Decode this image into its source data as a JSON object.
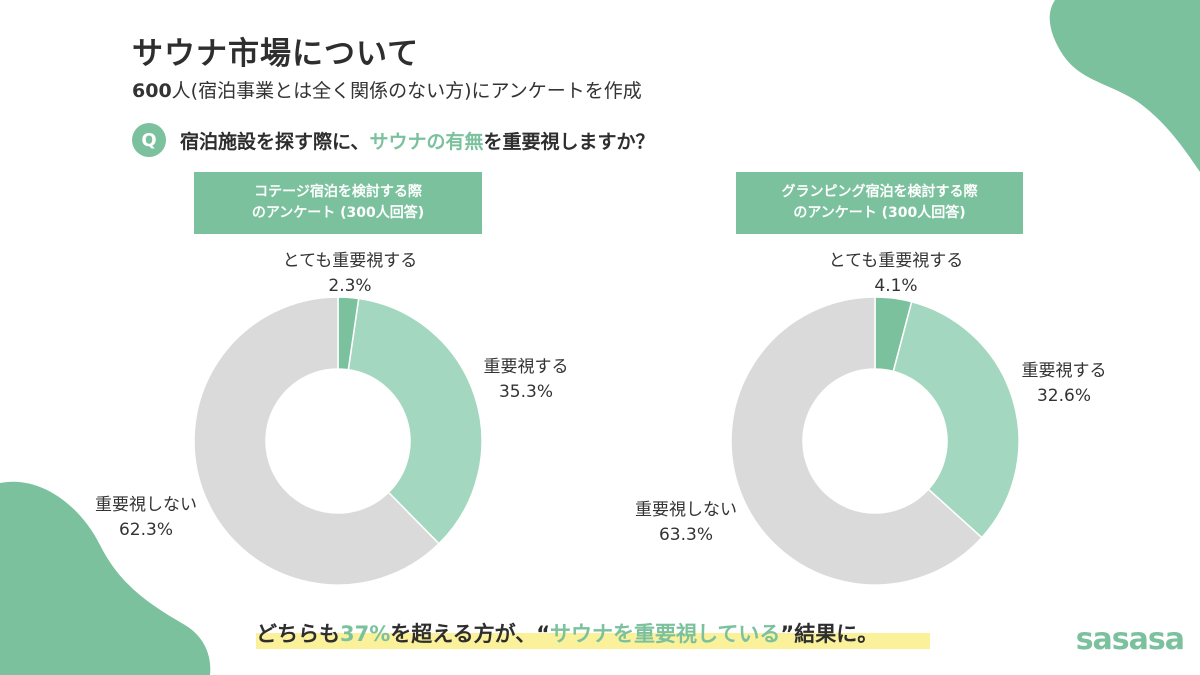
{
  "title": "サウナ市場について",
  "subtitle": {
    "count": "600",
    "rest": "人(宿泊事業とは全く関係のない方)にアンケートを作成"
  },
  "question": {
    "badge": "Q",
    "part1": "宿泊施設を探す際に、",
    "highlight": "サウナの有無",
    "part2": "を重要視しますか？"
  },
  "colors": {
    "accent": "#7bc19e",
    "light_green": "#a3d7bf",
    "dark_green": "#7bc19e",
    "gray": "#dadada",
    "highlight": "#fbf19b"
  },
  "chart_data": [
    {
      "type": "pie",
      "style": "donut",
      "title_lines": [
        "コテージ宿泊を検討する際",
        "のアンケート (300人回答)"
      ],
      "slices": [
        {
          "label": "とても重要視する",
          "value": 2.3,
          "display": "2.3%",
          "color": "#7bc19e"
        },
        {
          "label": "重要視する",
          "value": 35.3,
          "display": "35.3%",
          "color": "#a3d7bf"
        },
        {
          "label": "重要視しない",
          "value": 62.3,
          "display": "62.3%",
          "color": "#dadada"
        }
      ]
    },
    {
      "type": "pie",
      "style": "donut",
      "title_lines": [
        "グランピング宿泊を検討する際",
        "のアンケート (300人回答)"
      ],
      "slices": [
        {
          "label": "とても重要視する",
          "value": 4.1,
          "display": "4.1%",
          "color": "#7bc19e"
        },
        {
          "label": "重要視する",
          "value": 32.6,
          "display": "32.6%",
          "color": "#a3d7bf"
        },
        {
          "label": "重要視しない",
          "value": 63.3,
          "display": "63.3%",
          "color": "#dadada"
        }
      ]
    }
  ],
  "footer": {
    "part1": "どちらも",
    "pct": "37%",
    "part2": "を超える方が、“",
    "highlight": "サウナを重要視している",
    "part3": "”結果に。"
  },
  "logo": "sasasa"
}
